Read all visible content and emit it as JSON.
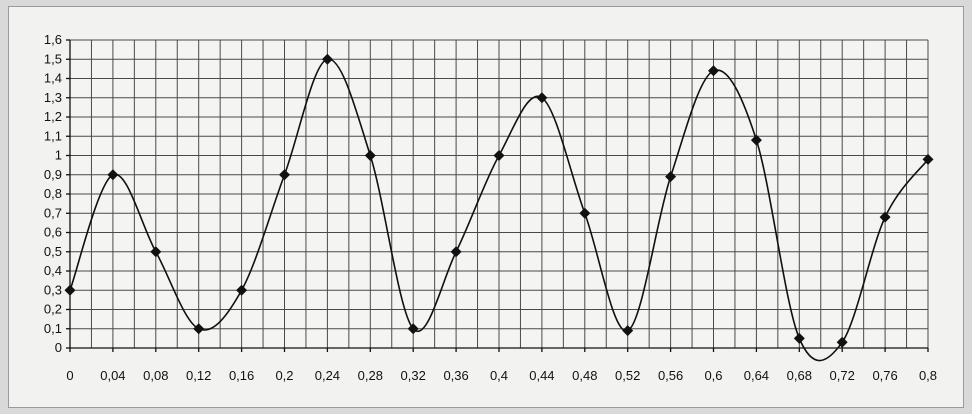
{
  "chart_data": {
    "type": "line",
    "title": "",
    "xlabel": "",
    "ylabel": "",
    "x": [
      0,
      0.04,
      0.08,
      0.12,
      0.16,
      0.2,
      0.24,
      0.28,
      0.32,
      0.36,
      0.4,
      0.44,
      0.48,
      0.52,
      0.56,
      0.6,
      0.64,
      0.68,
      0.72,
      0.76,
      0.8
    ],
    "x_tick_labels": [
      "0",
      "0,04",
      "0,08",
      "0,12",
      "0,16",
      "0,2",
      "0,24",
      "0,28",
      "0,32",
      "0,36",
      "0,4",
      "0,44",
      "0,48",
      "0,52",
      "0,56",
      "0,6",
      "0,64",
      "0,68",
      "0,72",
      "0,76",
      "0,8"
    ],
    "series": [
      {
        "values": [
          0.3,
          0.9,
          0.5,
          0.1,
          0.3,
          0.9,
          1.5,
          1.0,
          0.1,
          0.5,
          1.0,
          1.3,
          0.7,
          0.09,
          0.89,
          1.44,
          1.08,
          0.05,
          0.03,
          0.68,
          0.98
        ],
        "smooth": true,
        "marker": "diamond",
        "color": "#111111"
      }
    ],
    "ylim": [
      0,
      1.6
    ],
    "y_ticks": [
      0,
      0.1,
      0.2,
      0.3,
      0.4,
      0.5,
      0.6,
      0.7,
      0.8,
      0.9,
      1.0,
      1.1,
      1.2,
      1.3,
      1.4,
      1.5,
      1.6
    ],
    "y_tick_labels": [
      "0",
      "0,1",
      "0,2",
      "0,3",
      "0,4",
      "0,5",
      "0,6",
      "0,7",
      "0,8",
      "0,9",
      "1",
      "1,1",
      "1,2",
      "1,3",
      "1,4",
      "1,5",
      "1,6"
    ],
    "xlim": [
      0,
      0.8
    ],
    "grid": true,
    "legend": "none"
  }
}
